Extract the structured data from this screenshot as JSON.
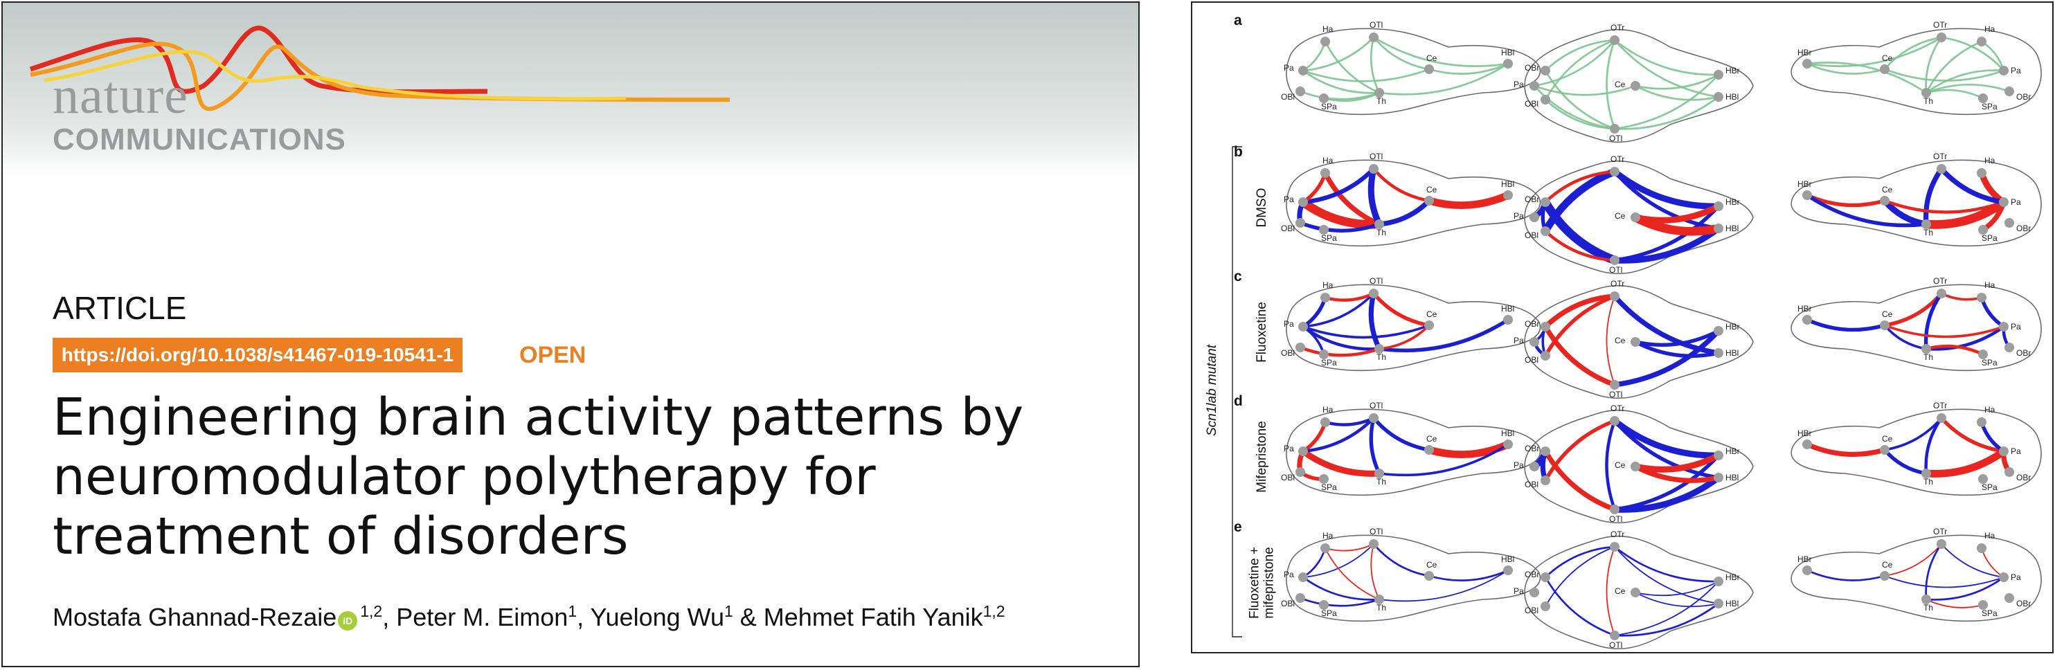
{
  "journal": {
    "logo_line1": "nature",
    "logo_line2": "COMMUNICATIONS",
    "wave_colors": [
      "#e12b1f",
      "#f39a1f",
      "#f7d23a"
    ]
  },
  "article": {
    "type": "ARTICLE",
    "doi": "https://doi.org/10.1038/s41467-019-10541-1",
    "open_label": "OPEN",
    "title": "Engineering brain activity patterns by neuromodulator polytherapy for treatment of disorders",
    "authors": [
      {
        "name": "Mostafa Ghannad-Rezaie",
        "orcid": true,
        "affil": "1,2",
        "sep": ", "
      },
      {
        "name": "Peter M. Eimon",
        "orcid": false,
        "affil": "1",
        "sep": ", "
      },
      {
        "name": "Yuelong Wu",
        "orcid": false,
        "affil": "1",
        "sep": " & "
      },
      {
        "name": "Mehmet Fatih Yanik",
        "orcid": false,
        "affil": "1,2",
        "sep": ""
      }
    ],
    "orcid_label": "iD"
  },
  "figure": {
    "colors": {
      "positive": "#e8251e",
      "negative": "#1b1fd1",
      "reference": "#7cc48f",
      "node": "#9d9d9d",
      "outline": "#6b6b6b"
    },
    "group_label": "Scn1lab mutant",
    "views": [
      {
        "view": "lateral-left",
        "nodes": {
          "Ha": "Ha",
          "OTl": "OTl",
          "Pa": "Pa",
          "OBl": "OBl",
          "SPa": "SPa",
          "Th": "Th",
          "Ce": "Ce",
          "HBl": "HBl"
        }
      },
      {
        "view": "dorsal",
        "nodes": {
          "OTr": "OTr",
          "OBr": "OBr",
          "Pa": "Pa",
          "OBl": "OBl",
          "Ce": "Ce",
          "HBr": "HBr",
          "HBl": "HBl",
          "OTl": "OTl"
        }
      },
      {
        "view": "lateral-right",
        "nodes": {
          "HBr": "HBr",
          "Ce": "Ce",
          "OTr": "OTr",
          "Ha": "Ha",
          "Pa": "Pa",
          "OBr": "OBr",
          "Th": "Th",
          "SPa": "SPa"
        }
      }
    ],
    "panels": [
      {
        "letter": "a",
        "row_label": "",
        "style": "reference",
        "views": [
          [
            [
              "Pa",
              "Ha",
              0,
              3
            ],
            [
              "Pa",
              "OTl",
              0,
              3
            ],
            [
              "Pa",
              "Th",
              0,
              3
            ],
            [
              "Pa",
              "Ce",
              0,
              3
            ],
            [
              "Ha",
              "Th",
              0,
              3
            ],
            [
              "OTl",
              "Th",
              0,
              3
            ],
            [
              "OTl",
              "Ce",
              0,
              3
            ],
            [
              "Ce",
              "HBl",
              0,
              3
            ],
            [
              "OTl",
              "HBl",
              0,
              3
            ],
            [
              "Th",
              "HBl",
              0,
              3
            ],
            [
              "SPa",
              "Th",
              0,
              3
            ],
            [
              "OBl",
              "Th",
              0,
              3
            ]
          ],
          [
            [
              "OTr",
              "OBr",
              0,
              3
            ],
            [
              "OTr",
              "OBl",
              0,
              3
            ],
            [
              "OTr",
              "OTl",
              0,
              3
            ],
            [
              "OTr",
              "HBr",
              0,
              3
            ],
            [
              "OTr",
              "HBl",
              0,
              3
            ],
            [
              "OBr",
              "OTl",
              0,
              3
            ],
            [
              "OBl",
              "OTl",
              0,
              3
            ],
            [
              "OTl",
              "HBr",
              0,
              3
            ],
            [
              "OTl",
              "HBl",
              0,
              3
            ],
            [
              "Ce",
              "HBr",
              0,
              3
            ],
            [
              "Ce",
              "HBl",
              0,
              3
            ],
            [
              "Pa",
              "Ce",
              0,
              3
            ],
            [
              "Pa",
              "OTr",
              0,
              3
            ],
            [
              "Pa",
              "OTl",
              0,
              3
            ]
          ],
          [
            [
              "Pa",
              "Ha",
              0,
              3
            ],
            [
              "Pa",
              "OTr",
              0,
              3
            ],
            [
              "Pa",
              "Th",
              0,
              3
            ],
            [
              "Ce",
              "Pa",
              0,
              3
            ],
            [
              "Ha",
              "Th",
              0,
              3
            ],
            [
              "OTr",
              "Th",
              0,
              3
            ],
            [
              "OTr",
              "Ce",
              0,
              3
            ],
            [
              "HBr",
              "Ce",
              0,
              3
            ],
            [
              "HBr",
              "OTr",
              0,
              3
            ],
            [
              "Th",
              "HBr",
              0,
              3
            ],
            [
              "SPa",
              "Th",
              0,
              3
            ],
            [
              "OBr",
              "Th",
              0,
              3
            ]
          ]
        ]
      },
      {
        "letter": "b",
        "row_label": "DMSO",
        "style": "signed",
        "views": [
          [
            [
              "Pa",
              "Th",
              1,
              14
            ],
            [
              "Ha",
              "Th",
              1,
              8
            ],
            [
              "Ce",
              "HBl",
              1,
              12
            ],
            [
              "Pa",
              "OTl",
              -1,
              7
            ],
            [
              "OTl",
              "Th",
              -1,
              10
            ],
            [
              "Th",
              "Ce",
              -1,
              8
            ],
            [
              "OBl",
              "Th",
              -1,
              6
            ],
            [
              "Pa",
              "OBl",
              -1,
              8
            ],
            [
              "Pa",
              "Ha",
              1,
              6
            ],
            [
              "OTl",
              "Ce",
              1,
              5
            ]
          ],
          [
            [
              "OBr",
              "OTl",
              -1,
              14
            ],
            [
              "OTr",
              "OBl",
              -1,
              12
            ],
            [
              "OTr",
              "HBr",
              -1,
              10
            ],
            [
              "OTl",
              "HBl",
              -1,
              10
            ],
            [
              "OTr",
              "HBl",
              -1,
              6
            ],
            [
              "OTl",
              "HBr",
              -1,
              6
            ],
            [
              "Ce",
              "HBl",
              1,
              14
            ],
            [
              "Ce",
              "HBr",
              1,
              10
            ],
            [
              "Pa",
              "OBr",
              -1,
              8
            ],
            [
              "OBr",
              "OBl",
              -1,
              6
            ],
            [
              "OTr",
              "OBr",
              1,
              5
            ],
            [
              "OBl",
              "OTl",
              1,
              5
            ]
          ],
          [
            [
              "HBr",
              "Ce",
              1,
              6
            ],
            [
              "Ce",
              "Th",
              -1,
              10
            ],
            [
              "Th",
              "Pa",
              1,
              14
            ],
            [
              "OTr",
              "Th",
              -1,
              8
            ],
            [
              "Ce",
              "Pa",
              1,
              5
            ],
            [
              "Ha",
              "Pa",
              1,
              10
            ],
            [
              "OTr",
              "Pa",
              -1,
              8
            ],
            [
              "HBr",
              "Th",
              -1,
              6
            ],
            [
              "SPa",
              "Pa",
              1,
              8
            ]
          ]
        ]
      },
      {
        "letter": "c",
        "row_label": "Fluoxetine",
        "style": "signed",
        "views": [
          [
            [
              "Pa",
              "Ha",
              -1,
              6
            ],
            [
              "Pa",
              "OTl",
              -1,
              4
            ],
            [
              "Pa",
              "Th",
              -1,
              5
            ],
            [
              "Ha",
              "OTl",
              1,
              5
            ],
            [
              "OTl",
              "Ce",
              1,
              6
            ],
            [
              "OTl",
              "Th",
              -1,
              8
            ],
            [
              "Th",
              "HBl",
              -1,
              6
            ],
            [
              "Pa",
              "Ce",
              -1,
              4
            ],
            [
              "OBl",
              "Th",
              1,
              5
            ],
            [
              "SPa",
              "Pa",
              -1,
              4
            ],
            [
              "Th",
              "Ce",
              1,
              4
            ]
          ],
          [
            [
              "OTr",
              "OBr",
              1,
              8
            ],
            [
              "OTr",
              "OBl",
              1,
              6
            ],
            [
              "OBr",
              "OTl",
              1,
              8
            ],
            [
              "OTl",
              "HBr",
              -1,
              8
            ],
            [
              "OTr",
              "HBl",
              -1,
              8
            ],
            [
              "Ce",
              "HBr",
              -1,
              6
            ],
            [
              "Ce",
              "HBl",
              -1,
              6
            ],
            [
              "Pa",
              "OBl",
              -1,
              5
            ],
            [
              "OTr",
              "OTl",
              1,
              2
            ],
            [
              "OBr",
              "OBl",
              -1,
              4
            ],
            [
              "Pa",
              "OBr",
              -1,
              4
            ]
          ],
          [
            [
              "HBr",
              "Ce",
              -1,
              6
            ],
            [
              "Ce",
              "OTr",
              1,
              6
            ],
            [
              "OTr",
              "Ha",
              1,
              4
            ],
            [
              "OTr",
              "Th",
              -1,
              6
            ],
            [
              "Th",
              "Pa",
              -1,
              5
            ],
            [
              "Ha",
              "Pa",
              -1,
              6
            ],
            [
              "Ce",
              "Pa",
              1,
              4
            ],
            [
              "SPa",
              "Th",
              1,
              5
            ],
            [
              "Pa",
              "OBr",
              -1,
              5
            ],
            [
              "Ce",
              "Th",
              -1,
              4
            ]
          ]
        ]
      },
      {
        "letter": "d",
        "row_label": "Mifepristone",
        "style": "signed",
        "views": [
          [
            [
              "Pa",
              "Th",
              1,
              10
            ],
            [
              "Pa",
              "OBl",
              1,
              8
            ],
            [
              "Pa",
              "Ha",
              1,
              6
            ],
            [
              "OTl",
              "Th",
              -1,
              6
            ],
            [
              "Pa",
              "OTl",
              -1,
              5
            ],
            [
              "Ce",
              "HBl",
              1,
              12
            ],
            [
              "OTl",
              "Ce",
              -1,
              6
            ],
            [
              "Th",
              "HBl",
              -1,
              4
            ],
            [
              "OBl",
              "SPa",
              1,
              6
            ],
            [
              "Ha",
              "OTl",
              -1,
              5
            ]
          ],
          [
            [
              "OTr",
              "HBr",
              -1,
              10
            ],
            [
              "OTl",
              "HBl",
              -1,
              10
            ],
            [
              "OTr",
              "HBl",
              -1,
              6
            ],
            [
              "OTl",
              "HBr",
              -1,
              6
            ],
            [
              "OTr",
              "OTl",
              -1,
              5
            ],
            [
              "OBr",
              "OTl",
              1,
              8
            ],
            [
              "OTr",
              "OBl",
              1,
              6
            ],
            [
              "Ce",
              "HBr",
              1,
              10
            ],
            [
              "Ce",
              "HBl",
              1,
              8
            ],
            [
              "Pa",
              "OBr",
              -1,
              10
            ],
            [
              "OBr",
              "OBl",
              -1,
              8
            ]
          ],
          [
            [
              "HBr",
              "Ce",
              1,
              8
            ],
            [
              "Ce",
              "Th",
              -1,
              6
            ],
            [
              "Th",
              "Pa",
              1,
              12
            ],
            [
              "OTr",
              "Pa",
              1,
              6
            ],
            [
              "Ha",
              "Pa",
              -1,
              6
            ],
            [
              "Ce",
              "OTr",
              -1,
              4
            ],
            [
              "Pa",
              "OBr",
              1,
              8
            ],
            [
              "OTr",
              "Th",
              -1,
              5
            ]
          ]
        ]
      },
      {
        "letter": "e",
        "row_label": "Fluoxetine + mifepristone",
        "style": "signed",
        "views": [
          [
            [
              "Pa",
              "Ha",
              -1,
              3
            ],
            [
              "Pa",
              "Th",
              -1,
              3
            ],
            [
              "Ha",
              "OTl",
              1,
              2
            ],
            [
              "OTl",
              "Th",
              1,
              2
            ],
            [
              "OTl",
              "Ce",
              -1,
              3
            ],
            [
              "Ce",
              "HBl",
              -1,
              3
            ],
            [
              "Th",
              "HBl",
              -1,
              2
            ],
            [
              "Pa",
              "OTl",
              -1,
              2
            ],
            [
              "OBl",
              "Th",
              -1,
              3
            ],
            [
              "Ha",
              "Th",
              1,
              2
            ]
          ],
          [
            [
              "OTr",
              "OBr",
              -1,
              3
            ],
            [
              "OTr",
              "OBl",
              -1,
              2
            ],
            [
              "OBr",
              "OTl",
              -1,
              3
            ],
            [
              "OTr",
              "OTl",
              1,
              2
            ],
            [
              "OTr",
              "HBr",
              -1,
              3
            ],
            [
              "OTl",
              "HBl",
              -1,
              3
            ],
            [
              "OTr",
              "HBl",
              -1,
              2
            ],
            [
              "OTl",
              "HBr",
              -1,
              2
            ],
            [
              "Ce",
              "HBr",
              -1,
              2
            ],
            [
              "Ce",
              "HBl",
              -1,
              2
            ]
          ],
          [
            [
              "HBr",
              "Ce",
              -1,
              3
            ],
            [
              "Ce",
              "OTr",
              1,
              2
            ],
            [
              "OTr",
              "Th",
              -1,
              3
            ],
            [
              "Th",
              "Pa",
              -1,
              3
            ],
            [
              "Ha",
              "Pa",
              1,
              2
            ],
            [
              "Ce",
              "Pa",
              -1,
              2
            ],
            [
              "OTr",
              "Pa",
              -1,
              2
            ],
            [
              "Th",
              "SPa",
              1,
              2
            ]
          ]
        ]
      }
    ]
  }
}
